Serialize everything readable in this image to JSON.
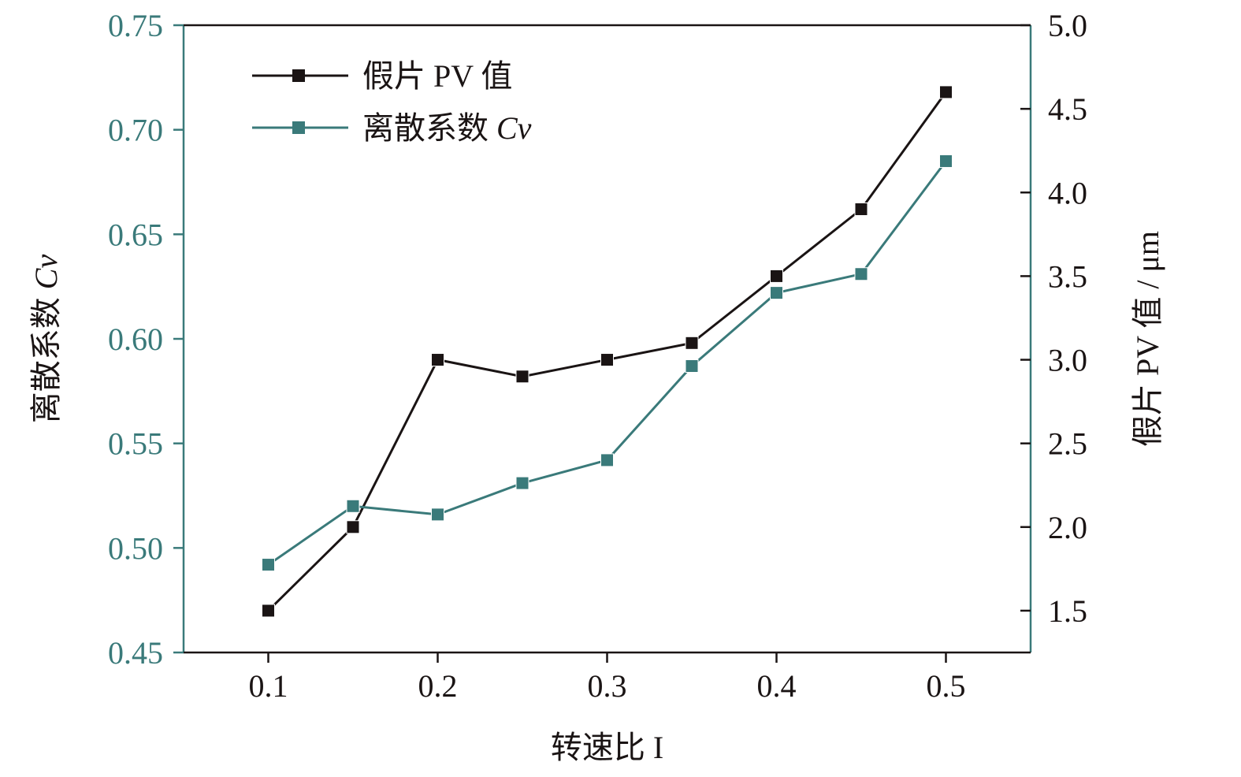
{
  "chart_data": {
    "type": "line",
    "title": "",
    "xlabel": "转速比 I",
    "ylabel_left": {
      "text": "离散系数 ",
      "italic": "Cv"
    },
    "ylabel_right": "假片 PV 值 / μm",
    "x": [
      0.1,
      0.15,
      0.2,
      0.25,
      0.3,
      0.35,
      0.4,
      0.45,
      0.5
    ],
    "xlim": [
      0.05,
      0.55
    ],
    "x_ticks": [
      0.1,
      0.2,
      0.3,
      0.4,
      0.5
    ],
    "x_tick_labels": [
      "0.1",
      "0.2",
      "0.3",
      "0.4",
      "0.5"
    ],
    "ylim_left": [
      0.45,
      0.75
    ],
    "y_ticks_left": [
      0.45,
      0.5,
      0.55,
      0.6,
      0.65,
      0.7,
      0.75
    ],
    "y_tick_labels_left": [
      "0.45",
      "0.50",
      "0.55",
      "0.60",
      "0.65",
      "0.70",
      "0.75"
    ],
    "ylim_right": [
      1.25,
      5.0
    ],
    "y_ticks_right": [
      1.5,
      2.0,
      2.5,
      3.0,
      3.5,
      4.0,
      4.5,
      5.0
    ],
    "y_tick_labels_right": [
      "1.5",
      "2.0",
      "2.5",
      "3.0",
      "3.5",
      "4.0",
      "4.5",
      "5.0"
    ],
    "grid": false,
    "legend_position": "top-left",
    "series": [
      {
        "name": "假片 PV 值",
        "axis": "right",
        "color": "#1a1414",
        "values": [
          1.5,
          2.0,
          3.0,
          2.9,
          3.0,
          3.1,
          3.5,
          3.9,
          4.6
        ]
      },
      {
        "name_text": "离散系数 ",
        "name_italic": "Cv",
        "axis": "left",
        "color": "#3a7a7a",
        "values": [
          0.492,
          0.52,
          0.516,
          0.531,
          0.542,
          0.587,
          0.622,
          0.631,
          0.685
        ]
      }
    ],
    "colors": {
      "left_axis": "#3a7a7a",
      "right_axis": "#1a1414",
      "x_axis": "#1a1414"
    }
  }
}
